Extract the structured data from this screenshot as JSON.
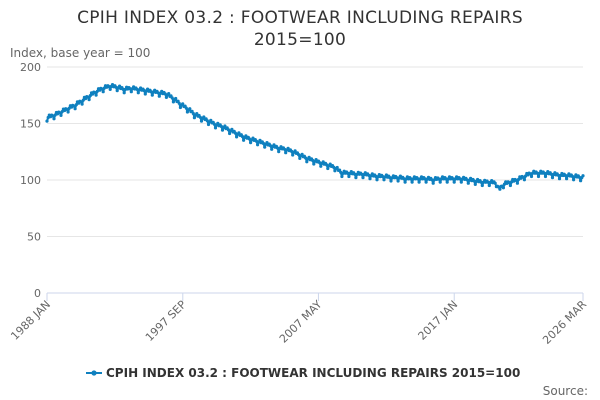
{
  "chart_data": {
    "type": "line",
    "title": "CPIH INDEX 03.2 : FOOTWEAR INCLUDING REPAIRS 2015=100",
    "ylabel": "Index, base year = 100",
    "xlabel": "",
    "ylim": [
      0,
      200
    ],
    "yticks": [
      0,
      50,
      100,
      150,
      200
    ],
    "xlim": [
      1988.0,
      2026.17
    ],
    "xticks": [
      {
        "label": "1988 JAN",
        "t": 1988.0
      },
      {
        "label": "1997 SEP",
        "t": 1997.67
      },
      {
        "label": "2007 MAY",
        "t": 2007.33
      },
      {
        "label": "2017 JAN",
        "t": 2017.0
      },
      {
        "label": "2026 MAR",
        "t": 2026.17
      }
    ],
    "grid": true,
    "legend_position": "bottom",
    "source_label": "Source:",
    "series": [
      {
        "name": "CPIH INDEX 03.2 : FOOTWEAR INCLUDING REPAIRS 2015=100",
        "color": "#0f80bf",
        "x": [
          1988.0,
          1988.5,
          1989.0,
          1989.5,
          1990.0,
          1990.5,
          1991.0,
          1991.5,
          1992.0,
          1992.5,
          1993.0,
          1993.5,
          1994.0,
          1994.5,
          1995.0,
          1995.5,
          1996.0,
          1996.5,
          1997.0,
          1997.5,
          1998.0,
          1998.5,
          1999.0,
          1999.5,
          2000.0,
          2000.5,
          2001.0,
          2001.5,
          2002.0,
          2002.5,
          2003.0,
          2003.5,
          2004.0,
          2004.5,
          2005.0,
          2005.5,
          2006.0,
          2006.5,
          2007.0,
          2007.5,
          2008.0,
          2008.5,
          2009.0,
          2009.5,
          2010.0,
          2010.5,
          2011.0,
          2011.5,
          2012.0,
          2012.5,
          2013.0,
          2013.5,
          2014.0,
          2014.5,
          2015.0,
          2015.5,
          2016.0,
          2016.5,
          2017.0,
          2017.5,
          2018.0,
          2018.5,
          2019.0,
          2019.5,
          2020.0,
          2020.2,
          2020.5,
          2021.0,
          2021.5,
          2022.0,
          2022.5,
          2023.0,
          2023.5,
          2024.0,
          2024.5,
          2025.0,
          2025.5,
          2026.17
        ],
        "values": [
          155,
          157,
          160,
          163,
          166,
          170,
          174,
          178,
          181,
          183,
          182,
          180,
          181,
          180,
          179,
          178,
          177,
          176,
          172,
          167,
          163,
          158,
          155,
          152,
          149,
          147,
          144,
          141,
          138,
          136,
          134,
          132,
          130,
          128,
          127,
          125,
          122,
          119,
          117,
          115,
          113,
          111,
          106,
          106,
          105,
          105,
          104,
          103,
          103,
          102,
          102,
          101,
          101,
          101,
          101,
          100,
          101,
          101,
          101,
          101,
          100,
          99,
          98,
          98,
          97,
          91,
          96,
          98,
          100,
          103,
          106,
          106,
          106,
          105,
          104,
          104,
          103,
          102
        ],
        "ripple": 2.2,
        "marker": "circle"
      }
    ]
  }
}
